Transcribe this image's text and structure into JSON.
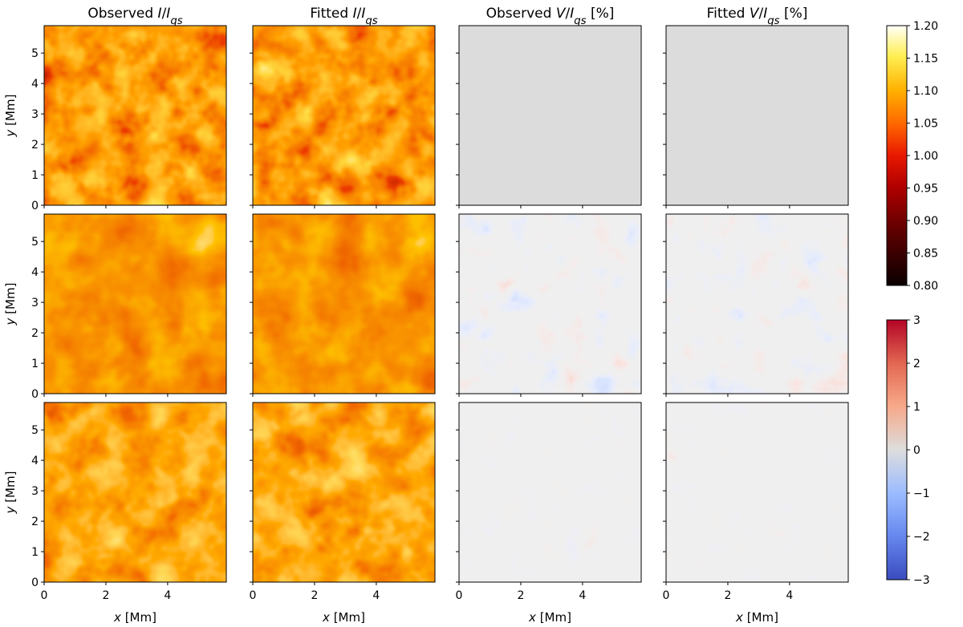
{
  "chart_data": {
    "type": "heatmap",
    "figure_description_free": true,
    "column_titles": [
      {
        "prefix": "Observed ",
        "var": "I",
        "mid": "/",
        "var2": "I",
        "sub": "qs",
        "suffix": ""
      },
      {
        "prefix": "Fitted ",
        "var": "I",
        "mid": "/",
        "var2": "I",
        "sub": "qs",
        "suffix": ""
      },
      {
        "prefix": "Observed ",
        "var": "V",
        "mid": "/",
        "var2": "I",
        "sub": "qs",
        "suffix": " [%]"
      },
      {
        "prefix": "Fitted ",
        "var": "V",
        "mid": "/",
        "var2": "I",
        "sub": "qs",
        "suffix": " [%]"
      }
    ],
    "xlabel": {
      "var": "x",
      "unit": " [Mm]"
    },
    "ylabel": {
      "var": "y",
      "unit": " [Mm]"
    },
    "x_ticks": [
      "0",
      "2",
      "4"
    ],
    "y_ticks": [
      "0",
      "1",
      "2",
      "3",
      "4",
      "5"
    ],
    "xlim": [
      0,
      5.9
    ],
    "ylim": [
      0,
      5.9
    ],
    "rows": 3,
    "columns": 4,
    "intensity_colorbar": {
      "colormap": "hot",
      "range": [
        0.8,
        1.2
      ],
      "ticks": [
        "0.80",
        "0.85",
        "0.90",
        "0.95",
        "1.00",
        "1.05",
        "1.10",
        "1.15",
        "1.20"
      ]
    },
    "stokes_v_colorbar": {
      "colormap": "coolwarm",
      "range": [
        -3,
        3
      ],
      "ticks": [
        "−3",
        "−2",
        "−1",
        "0",
        "1",
        "2",
        "3"
      ]
    }
  }
}
